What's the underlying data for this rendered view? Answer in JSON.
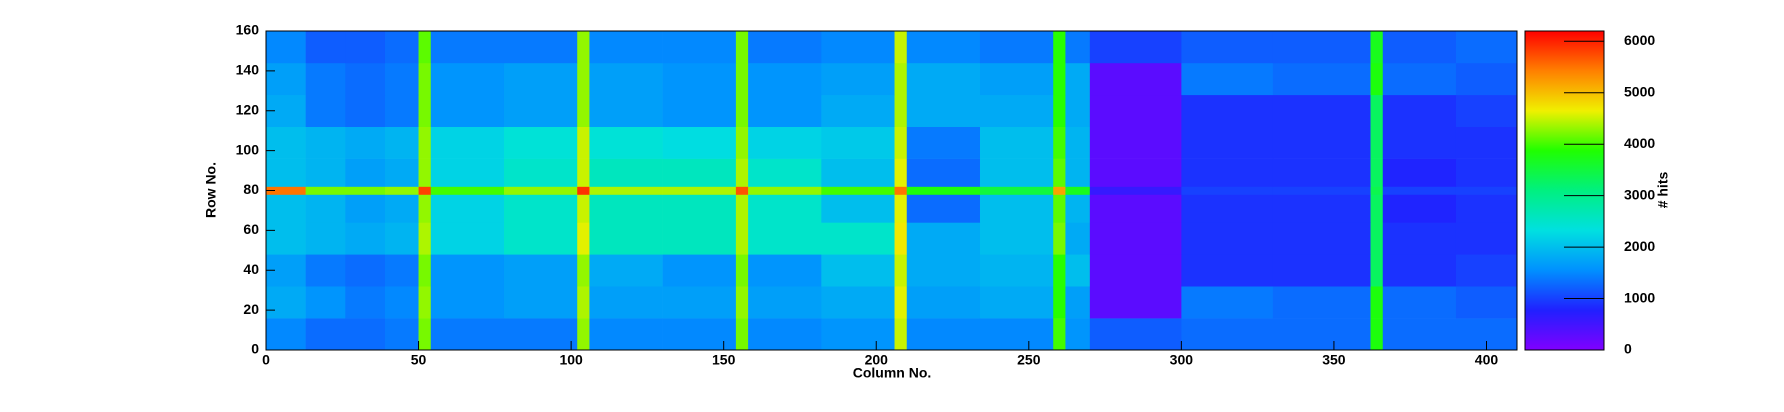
{
  "chart_data": {
    "type": "heatmap",
    "x_label": "Column No.",
    "y_label": "Row No.",
    "z_label": "# hits",
    "xlim": [
      0,
      410
    ],
    "ylim": [
      0,
      160
    ],
    "zlim": [
      0,
      6200
    ],
    "xticks": [
      0,
      50,
      100,
      150,
      200,
      250,
      300,
      350,
      400
    ],
    "yticks": [
      0,
      20,
      40,
      60,
      80,
      100,
      120,
      140,
      160
    ],
    "zticks": [
      0,
      1000,
      2000,
      3000,
      4000,
      5000,
      6000
    ],
    "colorscale": [
      "#8000ff",
      "#2020ff",
      "#0090ff",
      "#00e0e0",
      "#00f080",
      "#20ff00",
      "#f0f000",
      "#ff8000",
      "#ff0000"
    ],
    "x_bins": [
      0,
      13,
      26,
      39,
      50,
      54,
      78,
      102,
      106,
      130,
      154,
      158,
      182,
      206,
      210,
      234,
      258,
      262,
      270,
      300,
      330,
      362,
      366,
      390,
      410
    ],
    "y_bins": [
      0,
      16,
      32,
      48,
      64,
      78,
      82,
      96,
      112,
      128,
      144,
      160
    ],
    "z": [
      [
        1500,
        1300,
        1300,
        1400,
        4200,
        1400,
        1400,
        4300,
        1500,
        1500,
        4200,
        1500,
        1600,
        4500,
        1500,
        1500,
        4000,
        1600,
        1200,
        1300,
        1300,
        3800,
        1300,
        1300
      ],
      [
        1800,
        1600,
        1400,
        1500,
        4300,
        1600,
        1700,
        4400,
        1700,
        1700,
        4300,
        1700,
        1800,
        4600,
        1700,
        1800,
        3900,
        1700,
        300,
        1400,
        1300,
        3800,
        1300,
        1200
      ],
      [
        1700,
        1400,
        1300,
        1400,
        4200,
        1600,
        1700,
        4300,
        1800,
        1600,
        4200,
        1600,
        2000,
        4500,
        1800,
        1900,
        3900,
        2000,
        300,
        900,
        900,
        3300,
        900,
        1000
      ],
      [
        2000,
        1900,
        1800,
        1900,
        4400,
        2200,
        2500,
        4600,
        2600,
        2600,
        4400,
        2500,
        2500,
        4700,
        1800,
        2000,
        4200,
        1800,
        300,
        900,
        900,
        3300,
        900,
        900
      ],
      [
        2000,
        1900,
        1700,
        1800,
        4300,
        2200,
        2500,
        4500,
        2600,
        2600,
        4400,
        2500,
        2000,
        4600,
        1300,
        2000,
        4100,
        1900,
        300,
        900,
        900,
        3300,
        800,
        900
      ],
      [
        5500,
        4200,
        4200,
        4300,
        5800,
        4000,
        4300,
        5900,
        4400,
        4400,
        5700,
        4300,
        4000,
        5500,
        3800,
        3500,
        5200,
        3700,
        600,
        1000,
        1000,
        3400,
        1000,
        1000
      ],
      [
        2000,
        1900,
        1700,
        1800,
        4300,
        2200,
        2500,
        4500,
        2600,
        2600,
        4400,
        2500,
        2000,
        4600,
        1300,
        2000,
        4100,
        1900,
        300,
        900,
        900,
        3300,
        800,
        900
      ],
      [
        2000,
        1900,
        1800,
        1900,
        4300,
        2200,
        2400,
        4500,
        2400,
        2300,
        4300,
        2200,
        2100,
        4500,
        1400,
        2000,
        4000,
        1900,
        300,
        900,
        900,
        3300,
        900,
        900
      ],
      [
        1800,
        1400,
        1300,
        1400,
        4200,
        1600,
        1700,
        4300,
        1700,
        1600,
        4200,
        1600,
        1800,
        4400,
        1800,
        1800,
        3900,
        1800,
        300,
        900,
        900,
        3300,
        900,
        1000
      ],
      [
        1700,
        1400,
        1300,
        1400,
        4200,
        1600,
        1700,
        4300,
        1700,
        1600,
        4200,
        1600,
        1700,
        4400,
        1800,
        1700,
        3900,
        1800,
        300,
        1400,
        1300,
        3800,
        1300,
        1200
      ],
      [
        1500,
        1200,
        1200,
        1300,
        4100,
        1400,
        1400,
        4300,
        1500,
        1500,
        4200,
        1400,
        1500,
        4500,
        1500,
        1400,
        3900,
        1400,
        1000,
        1200,
        1200,
        3700,
        1200,
        1300
      ]
    ]
  }
}
